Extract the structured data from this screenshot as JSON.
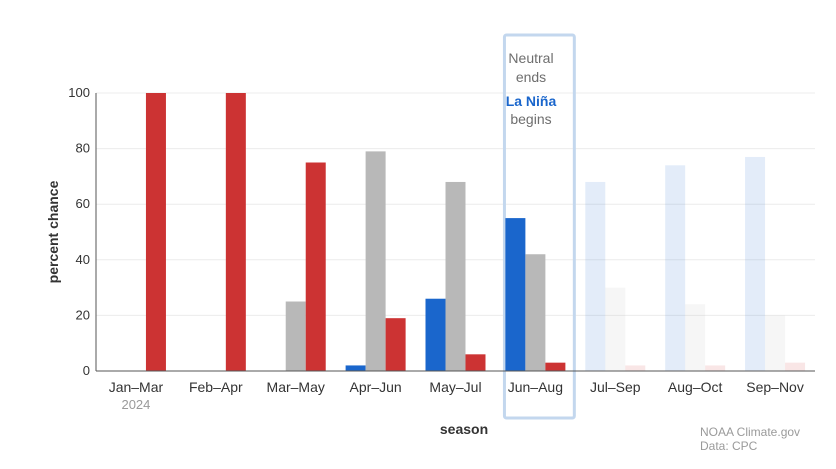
{
  "chart_data": {
    "type": "bar",
    "xlabel": "season",
    "ylabel": "percent chance",
    "ylim": [
      0,
      100
    ],
    "yticks": [
      0,
      20,
      40,
      60,
      80,
      100
    ],
    "grid": "horizontal",
    "categories": [
      "Jan–Mar",
      "Feb–Apr",
      "Mar–May",
      "Apr–Jun",
      "May–Jul",
      "Jun–Aug",
      "Jul–Sep",
      "Aug–Oct",
      "Sep–Nov"
    ],
    "category_sublabel": {
      "index": 0,
      "text": "2024"
    },
    "series": [
      {
        "key": "la_nina",
        "color": "#1a66cc",
        "values": [
          0,
          0,
          0,
          2,
          26,
          55,
          68,
          74,
          77
        ]
      },
      {
        "key": "neutral",
        "color": "#b8b8b8",
        "values": [
          0,
          0,
          25,
          79,
          68,
          42,
          30,
          24,
          20
        ]
      },
      {
        "key": "el_nino",
        "color": "#cc3333",
        "values": [
          100,
          100,
          75,
          19,
          6,
          3,
          2,
          2,
          3
        ]
      }
    ],
    "faded_from_index": 6,
    "highlight": {
      "index": 5,
      "line1": "Neutral",
      "line2": "ends",
      "line3": "La Niña",
      "line4": "begins",
      "line3_color": "#1a66cc"
    }
  },
  "credit": {
    "line1": "NOAA Climate.gov",
    "line2": "Data: CPC"
  }
}
